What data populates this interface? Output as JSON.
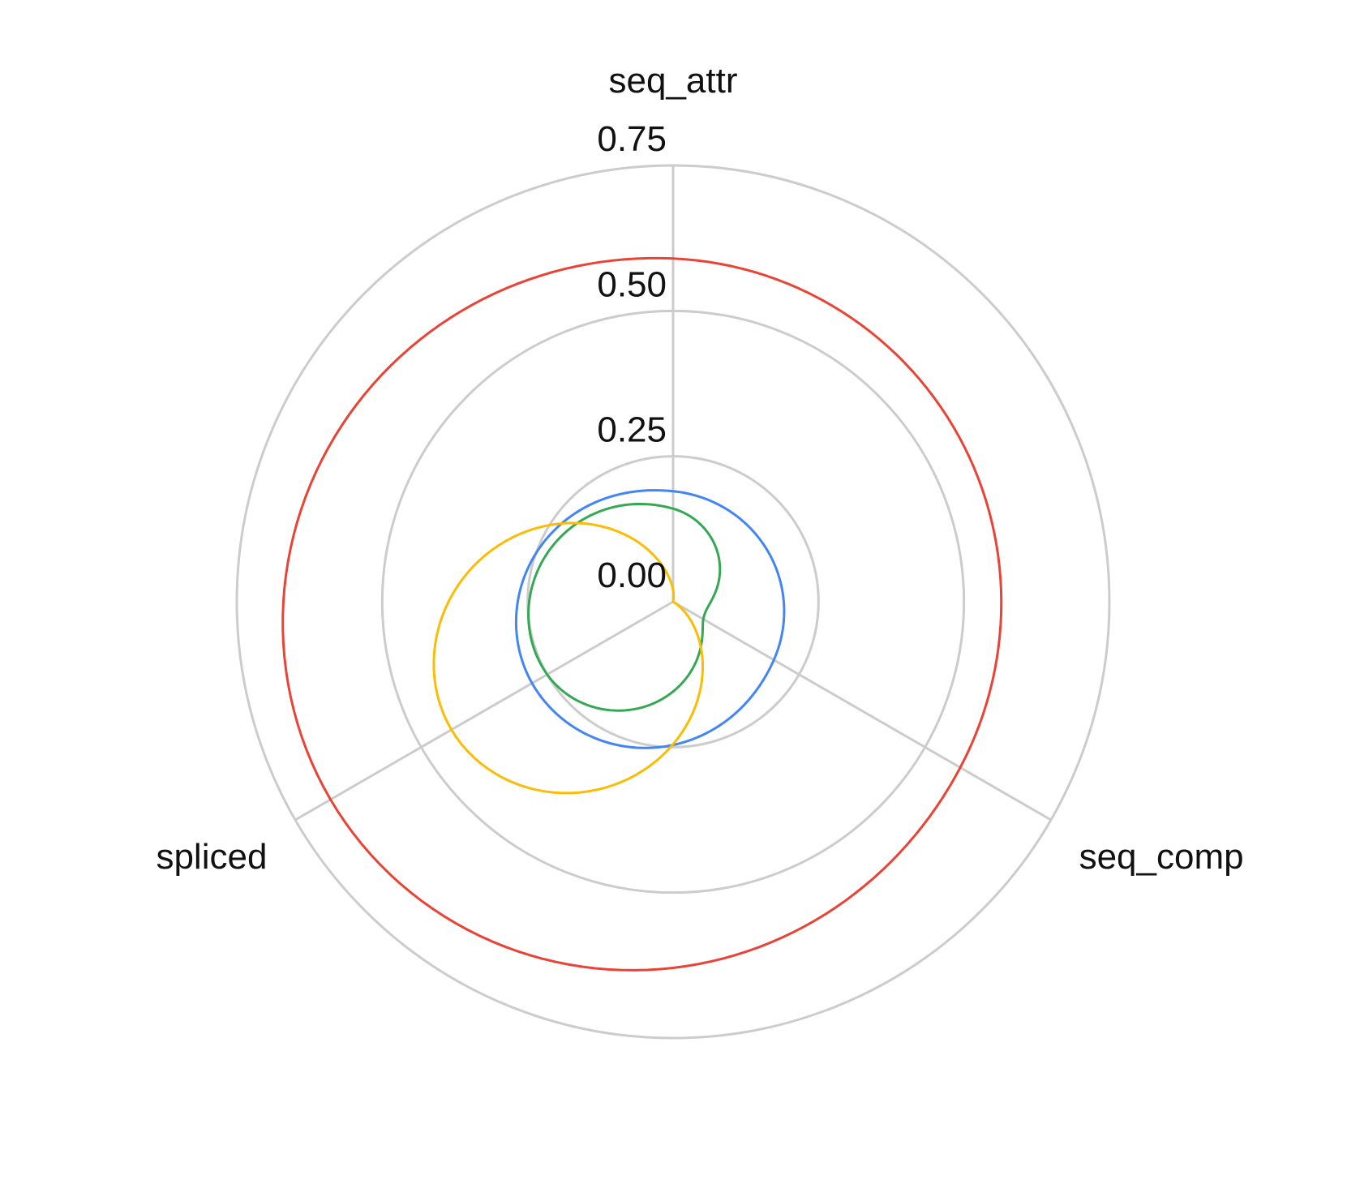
{
  "chart_data": {
    "type": "radar",
    "title": "",
    "axes": [
      "seq_attr",
      "seq_comp",
      "spliced"
    ],
    "radial_ticks": [
      "0.00",
      "0.25",
      "0.50",
      "0.75"
    ],
    "tick_values": [
      0,
      0.25,
      0.5,
      0.75
    ],
    "rlim": [
      0,
      0.75
    ],
    "grid": true,
    "legend": "none",
    "curve": "smooth",
    "series": [
      {
        "color": "#ea4335",
        "values": [
          0.59,
          0.57,
          0.68
        ]
      },
      {
        "color": "#4285f4",
        "values": [
          0.19,
          0.2,
          0.28
        ]
      },
      {
        "color": "#34a853",
        "values": [
          0.16,
          0.06,
          0.25
        ]
      },
      {
        "color": "#fbbc04",
        "values": [
          0.02,
          0.0,
          0.44
        ]
      }
    ]
  }
}
